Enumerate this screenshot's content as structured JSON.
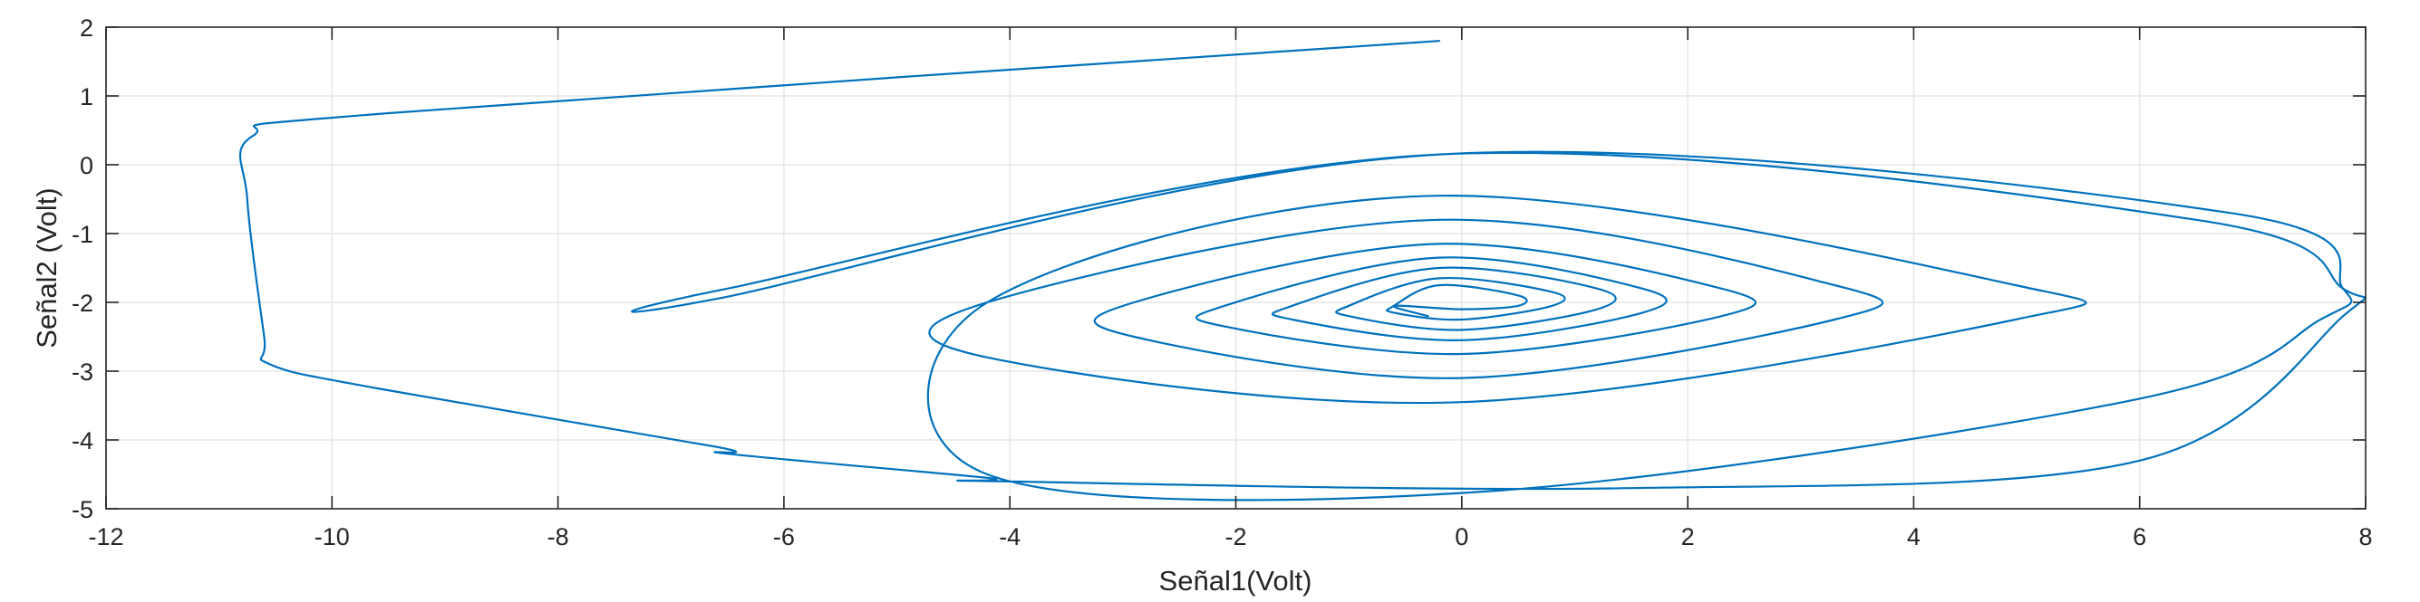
{
  "chart_data": {
    "type": "line",
    "title": "",
    "xlabel": "Señal1(Volt)",
    "ylabel": "Señal2 (Volt)",
    "xlim": [
      -12,
      8
    ],
    "ylim": [
      -5,
      2
    ],
    "xticks": [
      -12,
      -10,
      -8,
      -6,
      -4,
      -2,
      0,
      2,
      4,
      6,
      8
    ],
    "yticks": [
      -5,
      -4,
      -3,
      -2,
      -1,
      0,
      1,
      2
    ],
    "xtick_labels": [
      "-12",
      "-10",
      "-8",
      "-6",
      "-4",
      "-2",
      "0",
      "2",
      "4",
      "6",
      "8"
    ],
    "ytick_labels": [
      "-5",
      "-4",
      "-3",
      "-2",
      "-1",
      "0",
      "1",
      "2"
    ],
    "grid": true,
    "legend": "none",
    "colors": {
      "line": "#0072BD",
      "grid": "#e6e6e6",
      "axis": "#262626"
    },
    "series": [
      {
        "x": [
          -0.2,
          -9.5,
          -10.7,
          -10.75,
          -10.6,
          -10.55,
          -9.6,
          -6.6,
          -6.5,
          -4.2,
          -4.1,
          1.5,
          6.0,
          7.8,
          7.8,
          6.5,
          -0.2,
          -6.5,
          -6.6,
          -0.2,
          6.8,
          7.8,
          7.6,
          6.0,
          0.2,
          -4.2,
          -4.2,
          -0.2,
          4.9,
          4.9,
          0,
          -4.2,
          -4.2,
          -0.2,
          3.3,
          3.3,
          0,
          -2.9,
          -2.9,
          -0.2,
          2.3,
          2.3,
          0,
          -2.1,
          -2.1,
          -0.2,
          1.6,
          1.6,
          0,
          -1.5,
          -1.5,
          -0.2,
          1.2,
          1.2,
          0,
          -1.0,
          -1.0,
          -0.2,
          0.8,
          0.8,
          0,
          -0.6,
          -0.6,
          -0.2,
          0.5,
          0.5,
          0,
          -0.6,
          -0.3
        ],
        "y": [
          1.8,
          0.75,
          0.42,
          -0.5,
          -2.5,
          -2.9,
          -3.25,
          -4.1,
          -4.2,
          -4.55,
          -4.6,
          -4.7,
          -4.3,
          -2.2,
          -1.8,
          -0.8,
          0.15,
          -1.8,
          -1.95,
          0.15,
          -0.7,
          -1.8,
          -2.25,
          -3.4,
          -4.75,
          -4.5,
          -2.0,
          -0.45,
          -1.75,
          -2.25,
          -3.45,
          -2.8,
          -2.0,
          -0.8,
          -1.75,
          -2.25,
          -3.1,
          -2.5,
          -2.0,
          -1.15,
          -1.8,
          -2.2,
          -2.75,
          -2.35,
          -2.05,
          -1.35,
          -1.8,
          -2.15,
          -2.55,
          -2.25,
          -2.05,
          -1.5,
          -1.8,
          -2.1,
          -2.4,
          -2.2,
          -2.05,
          -1.65,
          -1.85,
          -2.05,
          -2.25,
          -2.15,
          -2.05,
          -1.75,
          -1.9,
          -2.05,
          -2.1,
          -2.05,
          -2.2
        ]
      }
    ]
  }
}
